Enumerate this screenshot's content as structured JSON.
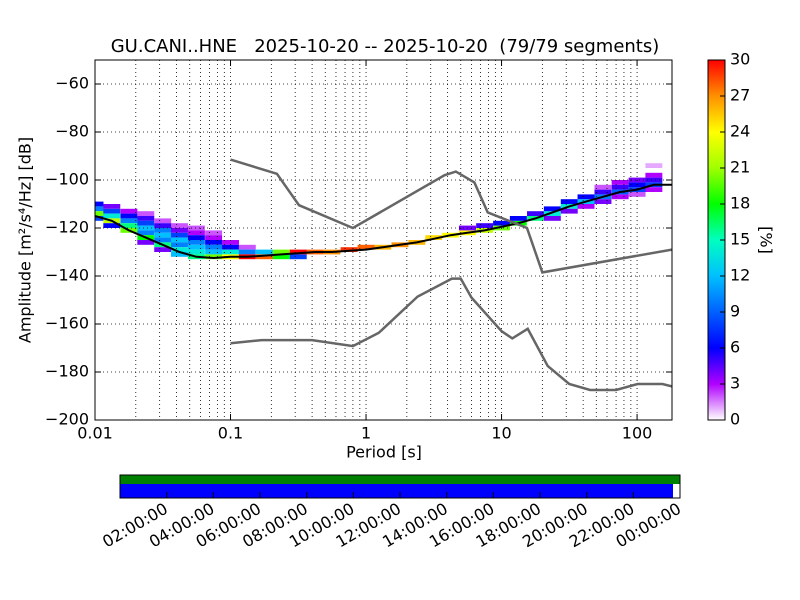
{
  "chart_data": {
    "type": "ppsd",
    "title": "GU.CANI..HNE   2025-10-20 -- 2025-10-20  (79/79 segments)",
    "x_label": "Period [s]",
    "y_label": "Amplitude [m²/s⁴/Hz] [dB]",
    "x_log": true,
    "grid": true,
    "xlim": [
      0.01,
      181
    ],
    "xticks": [
      0.01,
      0.1,
      1,
      10,
      100
    ],
    "ylim": [
      -200,
      -50
    ],
    "yticks": [
      {
        "value": -60,
        "label": "−60"
      },
      {
        "value": -80,
        "label": "−80"
      },
      {
        "value": -100,
        "label": "−100"
      },
      {
        "value": -120,
        "label": "−120"
      },
      {
        "value": -140,
        "label": "−140"
      },
      {
        "value": -160,
        "label": "−160"
      },
      {
        "value": -180,
        "label": "−180"
      },
      {
        "value": -200,
        "label": "−200"
      }
    ],
    "cell_height_db": 2,
    "cells_per_decade": 8,
    "cells": {
      "x": [
        0.01,
        0.01,
        0.01,
        0.01,
        0.0133,
        0.0133,
        0.0133,
        0.0133,
        0.0133,
        0.0178,
        0.0178,
        0.0178,
        0.0178,
        0.0178,
        0.0237,
        0.0237,
        0.0237,
        0.0237,
        0.0237,
        0.0237,
        0.0237,
        0.0316,
        0.0316,
        0.0316,
        0.0316,
        0.0316,
        0.0316,
        0.0316,
        0.042,
        0.042,
        0.042,
        0.042,
        0.042,
        0.042,
        0.042,
        0.056,
        0.056,
        0.056,
        0.056,
        0.056,
        0.056,
        0.056,
        0.075,
        0.075,
        0.075,
        0.075,
        0.075,
        0.075,
        0.1,
        0.1,
        0.1,
        0.1,
        0.133,
        0.133,
        0.133,
        0.178,
        0.178,
        0.237,
        0.237,
        0.316,
        0.316,
        0.42,
        0.56,
        0.75,
        1,
        1.33,
        1.78,
        2.37,
        3.16,
        4.2,
        5.6,
        5.6,
        7.5,
        7.5,
        10,
        10,
        13.3,
        13.3,
        17.8,
        17.8,
        23.7,
        23.7,
        23.7,
        31.6,
        31.6,
        31.6,
        42,
        42,
        42,
        56,
        56,
        56,
        56,
        75,
        75,
        75,
        75,
        100,
        100,
        100,
        100,
        133,
        133,
        133,
        133,
        133
      ],
      "y": [
        -110,
        -112,
        -114,
        -116,
        -111,
        -113,
        -115,
        -117,
        -119,
        -113,
        -115,
        -117,
        -119,
        -121,
        -114,
        -116,
        -118,
        -120,
        -122,
        -124,
        -126,
        -117,
        -119,
        -121,
        -123,
        -125,
        -127,
        -129,
        -119,
        -121,
        -123,
        -125,
        -127,
        -129,
        -131,
        -120,
        -122,
        -124,
        -126,
        -128,
        -130,
        -132,
        -122,
        -124,
        -126,
        -128,
        -130,
        -132,
        -126,
        -128,
        -130,
        -132,
        -128,
        -130,
        -132,
        -130,
        -132,
        -130,
        -132,
        -130,
        -132,
        -130,
        -130,
        -129,
        -128,
        -128,
        -127,
        -126,
        -124,
        -123,
        -122,
        -120,
        -121,
        -119,
        -120,
        -118,
        -118,
        -116,
        -116,
        -114,
        -114,
        -112,
        -116,
        -111,
        -109,
        -113,
        -109,
        -107,
        -111,
        -107,
        -105,
        -109,
        -103,
        -105,
        -103,
        -101,
        -107,
        -104,
        -102,
        -100,
        -106,
        -102,
        -100,
        -98,
        -104,
        -94
      ],
      "values": [
        6,
        10,
        20,
        8,
        4,
        8,
        14,
        22,
        6,
        3,
        6,
        10,
        16,
        20,
        2,
        5,
        8,
        12,
        10,
        18,
        4,
        2,
        5,
        10,
        12,
        10,
        16,
        4,
        2,
        4,
        8,
        12,
        10,
        14,
        12,
        2,
        3,
        6,
        10,
        12,
        14,
        16,
        2,
        3,
        6,
        10,
        12,
        20,
        3,
        6,
        14,
        24,
        2,
        10,
        30,
        12,
        28,
        20,
        18,
        30,
        8,
        28,
        27,
        29,
        28,
        26,
        27,
        26,
        25,
        24,
        24,
        4,
        22,
        5,
        20,
        6,
        18,
        6,
        16,
        5,
        14,
        6,
        4,
        14,
        6,
        4,
        12,
        6,
        3,
        10,
        5,
        4,
        2,
        9,
        5,
        3,
        3,
        8,
        6,
        4,
        2,
        8,
        5,
        3,
        3,
        1
      ]
    },
    "series": [
      {
        "color": "#000000",
        "x": [
          0.01,
          0.0133,
          0.0178,
          0.0237,
          0.0316,
          0.042,
          0.056,
          0.075,
          0.1,
          0.133,
          0.178,
          0.237,
          0.316,
          0.42,
          0.56,
          0.75,
          1,
          1.33,
          1.78,
          2.37,
          3.16,
          4.2,
          5.6,
          7.5,
          10,
          13.3,
          17.8,
          23.7,
          31.6,
          42,
          56,
          75,
          100,
          133,
          181
        ],
        "values": [
          -115,
          -117,
          -121,
          -124,
          -127,
          -130,
          -132,
          -132.5,
          -132,
          -132,
          -131.5,
          -131,
          -130.5,
          -130,
          -130,
          -129.5,
          -129,
          -128,
          -127,
          -126,
          -124.5,
          -123,
          -122,
          -121,
          -119.5,
          -118,
          -116,
          -113.5,
          -111,
          -109,
          -107,
          -105,
          -104,
          -102,
          -102
        ]
      },
      {
        "color": "#666666",
        "x": [
          0.1,
          0.22,
          0.32,
          0.8,
          3.8,
          4.6,
          6.3,
          7.9,
          15.4,
          20,
          181
        ],
        "values": [
          -91.5,
          -97.4,
          -110.5,
          -120,
          -98,
          -96.5,
          -101,
          -113.5,
          -120,
          -138.5,
          -129
        ]
      },
      {
        "color": "#666666",
        "x": [
          0.1,
          0.17,
          0.4,
          0.8,
          1.24,
          2.4,
          4.3,
          5,
          6,
          10,
          12,
          15.6,
          21.9,
          31.6,
          45,
          70,
          101,
          154,
          181
        ],
        "values": [
          -168,
          -166.7,
          -166.7,
          -169.2,
          -163.7,
          -148.6,
          -141.1,
          -141.1,
          -149,
          -163,
          -166,
          -162,
          -177.5,
          -185,
          -187.5,
          -187.5,
          -185,
          -185,
          -186
        ]
      }
    ],
    "colorbar": {
      "label": "[%]",
      "clim": [
        0,
        30
      ],
      "ticks": [
        0,
        3,
        6,
        9,
        12,
        15,
        18,
        21,
        24,
        27,
        30
      ],
      "colormap": [
        "#ffffff",
        "#b000ff",
        "#0000ff",
        "#0060ff",
        "#00c0ff",
        "#00ffc0",
        "#00ff00",
        "#a0ff00",
        "#ffff00",
        "#ff9000",
        "#ff0000"
      ]
    },
    "timeline": {
      "xlim": [
        0,
        24
      ],
      "available": {
        "range": [
          0,
          24
        ],
        "color": "#008000"
      },
      "processed": {
        "range": [
          0,
          23.7
        ],
        "color": "#0000ff"
      },
      "ticks": [
        {
          "value": 2,
          "label": "02:00:00"
        },
        {
          "value": 4,
          "label": "04:00:00"
        },
        {
          "value": 6,
          "label": "06:00:00"
        },
        {
          "value": 8,
          "label": "08:00:00"
        },
        {
          "value": 10,
          "label": "10:00:00"
        },
        {
          "value": 12,
          "label": "12:00:00"
        },
        {
          "value": 14,
          "label": "14:00:00"
        },
        {
          "value": 16,
          "label": "16:00:00"
        },
        {
          "value": 18,
          "label": "18:00:00"
        },
        {
          "value": 20,
          "label": "20:00:00"
        },
        {
          "value": 22,
          "label": "22:00:00"
        },
        {
          "value": 24,
          "label": "00:00:00"
        }
      ]
    }
  }
}
